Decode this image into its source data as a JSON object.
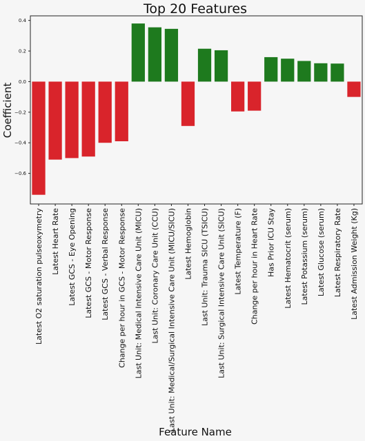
{
  "chart_data": {
    "type": "bar",
    "title": "Top 20 Features",
    "xlabel": "Feature Name",
    "ylabel": "Coefficient",
    "ylim": [
      -0.8,
      0.43
    ],
    "yticks": [
      -0.6,
      -0.4,
      -0.2,
      0.0,
      0.2,
      0.4
    ],
    "ytick_labels": [
      "−0.6",
      "−0.4",
      "−0.2",
      "0.0",
      "0.2",
      "0.4"
    ],
    "grid": false,
    "colors": {
      "positive": "#1e7a1e",
      "negative": "#d9242b"
    },
    "categories": [
      "Latest O2 saturation pulseoxymetry",
      "Latest Heart Rate",
      "Latest GCS - Eye Opening",
      "Latest GCS - Motor Response",
      "Latest GCS - Verbal Response",
      "Change per hour in GCS - Motor Response",
      "Last Unit: Medical Intensive Care Unit (MICU)",
      "Last Unit: Coronary Care Unit (CCU)",
      "Last Unit: Medical/Surgical Intensive Care Unit (MICU/SICU)",
      "Latest Hemoglobin",
      "Last Unit: Trauma SICU (TSICU)",
      "Last Unit: Surgical Intensive Care Unit (SICU)",
      "Latest Temperature (F)",
      "Change per hour in Heart Rate",
      "Has Prior ICU Stay",
      "Latest Hematocrit (serum)",
      "Latest Potassium (serum)",
      "Latest Glucose (serum)",
      "Latest Respiratory Rate",
      "Latest Admission Weight (Kg)"
    ],
    "values": [
      -0.74,
      -0.51,
      -0.5,
      -0.49,
      -0.4,
      -0.39,
      0.38,
      0.355,
      0.345,
      -0.29,
      0.215,
      0.205,
      -0.195,
      -0.19,
      0.16,
      0.15,
      0.135,
      0.12,
      0.118,
      -0.1
    ]
  }
}
